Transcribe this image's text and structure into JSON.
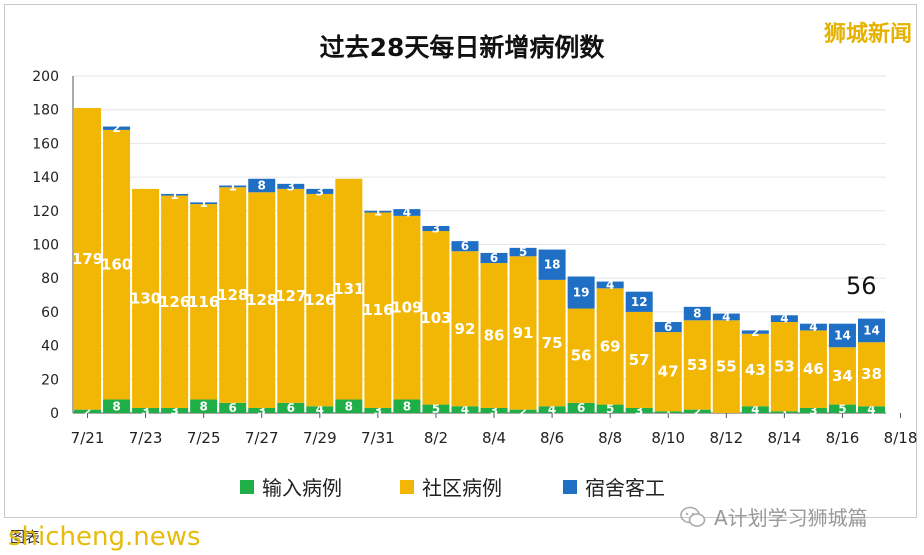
{
  "header": {
    "title": "过去28天每日新增病例数",
    "brand": "狮城新闻",
    "latest_total": "56"
  },
  "legend": {
    "items": [
      {
        "label": "输入病例",
        "color": "#1fae48"
      },
      {
        "label": "社区病例",
        "color": "#f2b705"
      },
      {
        "label": "宿舍客工",
        "color": "#1f6fc4"
      }
    ]
  },
  "footer": {
    "caption": "图表",
    "watermark": "shicheng.news",
    "wechat": "A计划学习狮城篇"
  },
  "chart_data": {
    "type": "bar",
    "stacked": true,
    "title": "过去28天每日新增病例数",
    "ylim": [
      0,
      200
    ],
    "yticks": [
      0,
      20,
      40,
      60,
      80,
      100,
      120,
      140,
      160,
      180,
      200
    ],
    "grid": true,
    "legend_position": "bottom",
    "categories": [
      "7/21",
      "7/22",
      "7/23",
      "7/24",
      "7/25",
      "7/26",
      "7/27",
      "7/28",
      "7/29",
      "7/30",
      "7/31",
      "8/1",
      "8/2",
      "8/3",
      "8/4",
      "8/5",
      "8/6",
      "8/7",
      "8/8",
      "8/9",
      "8/10",
      "8/11",
      "8/12",
      "8/13",
      "8/14",
      "8/15",
      "8/16",
      "8/17"
    ],
    "x_tick_labels": [
      "7/21",
      "7/23",
      "7/25",
      "7/27",
      "7/29",
      "7/31",
      "8/2",
      "8/4",
      "8/6",
      "8/8",
      "8/10",
      "8/12",
      "8/14",
      "8/16",
      "8/18"
    ],
    "series": [
      {
        "name": "输入病例",
        "color": "#1fae48",
        "values": [
          2,
          8,
          3,
          3,
          8,
          6,
          3,
          6,
          4,
          8,
          3,
          8,
          5,
          4,
          3,
          2,
          4,
          6,
          5,
          3,
          1,
          2,
          0,
          4,
          1,
          3,
          5,
          4
        ]
      },
      {
        "name": "社区病例",
        "color": "#f2b705",
        "values": [
          179,
          160,
          130,
          126,
          116,
          128,
          128,
          127,
          126,
          131,
          116,
          109,
          103,
          92,
          86,
          91,
          75,
          56,
          69,
          57,
          47,
          53,
          55,
          43,
          53,
          46,
          34,
          38
        ]
      },
      {
        "name": "宿舍客工",
        "color": "#1f6fc4",
        "values": [
          0,
          2,
          0,
          1,
          1,
          1,
          8,
          3,
          3,
          0,
          1,
          4,
          3,
          6,
          6,
          5,
          18,
          19,
          4,
          12,
          6,
          8,
          4,
          2,
          4,
          4,
          14,
          14
        ]
      }
    ]
  }
}
